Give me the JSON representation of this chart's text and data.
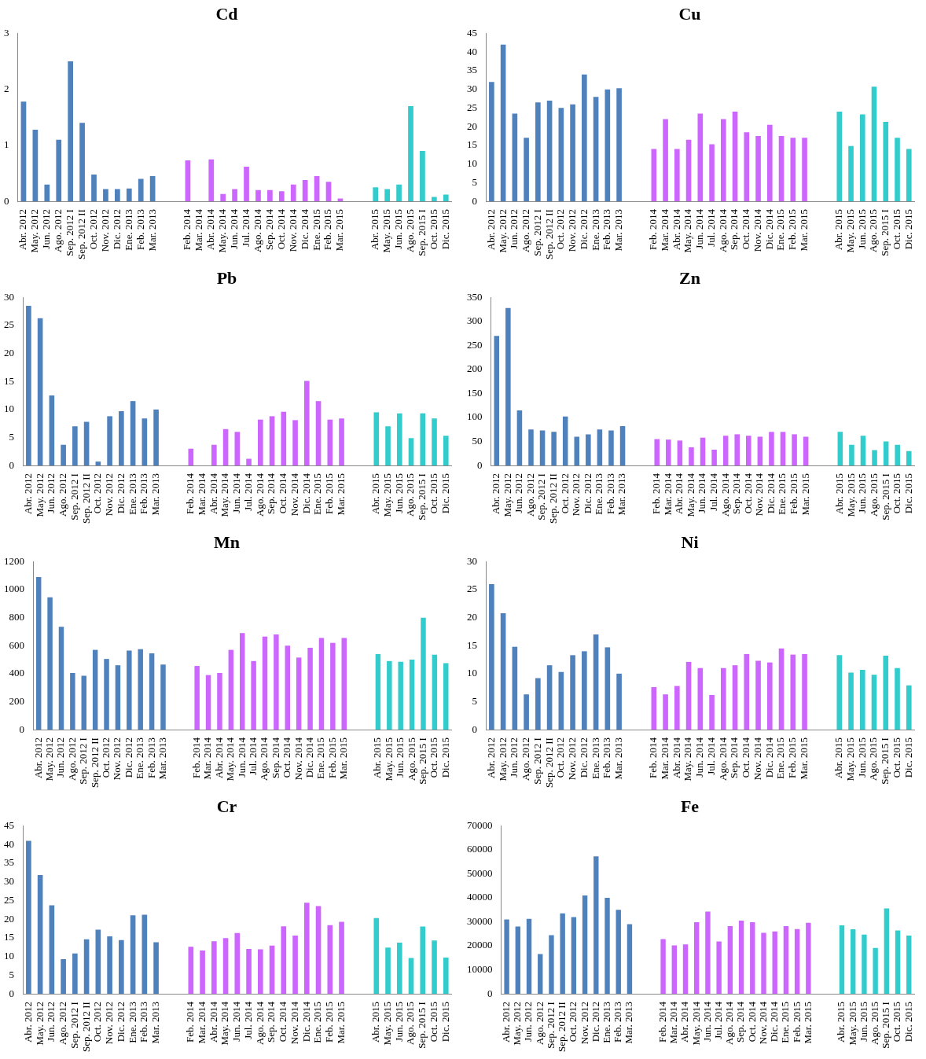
{
  "chart_data": [
    {
      "type": "bar",
      "title": "Cd",
      "categories": [
        "Abr. 2012",
        "May. 2012",
        "Jun. 2012",
        "Ago. 2012",
        "Sep. 2012 I",
        "Sep. 2012 II",
        "Oct. 2012",
        "Nov. 2012",
        "Dic. 2012",
        "Ene. 2013",
        "Feb. 2013",
        "Mar. 2013",
        null,
        null,
        "Feb. 2014",
        "Mar. 2014",
        "Abr. 2014",
        "May. 2014",
        "Jun. 2014",
        "Jul. 2014",
        "Ago. 2014",
        "Sep. 2014",
        "Oct. 2014",
        "Nov. 2014",
        "Dic. 2014",
        "Ene. 2015",
        "Feb. 2015",
        "Mar. 2015",
        null,
        null,
        "Abr. 2015",
        "May. 2015",
        "Jun. 2015",
        "Ago. 2015",
        "Sep. 2015 I",
        "Oct. 2015",
        "Dic. 2015"
      ],
      "values": [
        1.78,
        1.28,
        0.3,
        1.1,
        2.5,
        1.4,
        0.48,
        0.22,
        0.22,
        0.23,
        0.4,
        0.45,
        null,
        null,
        0.73,
        null,
        0.75,
        0.13,
        0.22,
        0.62,
        0.2,
        0.2,
        0.18,
        0.3,
        0.38,
        0.45,
        0.35,
        0.05,
        null,
        null,
        0.25,
        0.22,
        0.3,
        1.7,
        0.9,
        0.08,
        0.12
      ],
      "colors": [
        "#4f81bd",
        "#4f81bd",
        "#4f81bd",
        "#4f81bd",
        "#4f81bd",
        "#4f81bd",
        "#4f81bd",
        "#4f81bd",
        "#4f81bd",
        "#4f81bd",
        "#4f81bd",
        "#4f81bd",
        null,
        null,
        "#cc66ff",
        "#cc66ff",
        "#cc66ff",
        "#cc66ff",
        "#cc66ff",
        "#cc66ff",
        "#cc66ff",
        "#cc66ff",
        "#cc66ff",
        "#cc66ff",
        "#cc66ff",
        "#cc66ff",
        "#cc66ff",
        "#cc66ff",
        null,
        null,
        "#33cccc",
        "#33cccc",
        "#33cccc",
        "#33cccc",
        "#33cccc",
        "#33cccc",
        "#33cccc"
      ],
      "ylim": [
        0,
        3
      ],
      "yticks": [
        0,
        1,
        2,
        3
      ]
    },
    {
      "type": "bar",
      "title": "Cu",
      "categories": [
        "Abr. 2012",
        "May. 2012",
        "Jun. 2012",
        "Ago. 2012",
        "Sep. 2012 I",
        "Sep. 2012 II",
        "Oct. 2012",
        "Nov. 2012",
        "Dic. 2012",
        "Ene. 2013",
        "Feb. 2013",
        "Mar. 2013",
        null,
        null,
        "Feb. 2014",
        "Mar. 2014",
        "Abr. 2014",
        "May. 2014",
        "Jun. 2014",
        "Jul. 2014",
        "Ago. 2014",
        "Sep. 2014",
        "Oct. 2014",
        "Nov. 2014",
        "Dic. 2014",
        "Ene. 2015",
        "Feb. 2015",
        "Mar. 2015",
        null,
        null,
        "Abr. 2015",
        "May. 2015",
        "Jun. 2015",
        "Ago. 2015",
        "Sep. 2015 I",
        "Oct. 2015",
        "Dic. 2015"
      ],
      "values": [
        32,
        42,
        23.5,
        17,
        26.5,
        27,
        25,
        26,
        34,
        28,
        30,
        30.3,
        null,
        null,
        14,
        22,
        14,
        16.5,
        23.5,
        15.3,
        22,
        24,
        18.5,
        17.5,
        20.5,
        17.5,
        17,
        17,
        null,
        null,
        24,
        14.8,
        23.3,
        30.7,
        21.3,
        17,
        14
      ],
      "colors": [
        "#4f81bd",
        "#4f81bd",
        "#4f81bd",
        "#4f81bd",
        "#4f81bd",
        "#4f81bd",
        "#4f81bd",
        "#4f81bd",
        "#4f81bd",
        "#4f81bd",
        "#4f81bd",
        "#4f81bd",
        null,
        null,
        "#cc66ff",
        "#cc66ff",
        "#cc66ff",
        "#cc66ff",
        "#cc66ff",
        "#cc66ff",
        "#cc66ff",
        "#cc66ff",
        "#cc66ff",
        "#cc66ff",
        "#cc66ff",
        "#cc66ff",
        "#cc66ff",
        "#cc66ff",
        null,
        null,
        "#33cccc",
        "#33cccc",
        "#33cccc",
        "#33cccc",
        "#33cccc",
        "#33cccc",
        "#33cccc"
      ],
      "ylim": [
        0,
        45
      ],
      "yticks": [
        0,
        5,
        10,
        15,
        20,
        25,
        30,
        35,
        40,
        45
      ]
    },
    {
      "type": "bar",
      "title": "Pb",
      "categories": [
        "Abr. 2012",
        "May. 2012",
        "Jun. 2012",
        "Ago. 2012",
        "Sep. 2012 I",
        "Sep. 2012 II",
        "Oct. 2012",
        "Nov. 2012",
        "Dic. 2012",
        "Ene. 2013",
        "Feb. 2013",
        "Mar. 2013",
        null,
        null,
        "Feb. 2014",
        "Mar. 2014",
        "Abr. 2014",
        "May. 2014",
        "Jun. 2014",
        "Jul. 2014",
        "Ago. 2014",
        "Sep. 2014",
        "Oct. 2014",
        "Nov. 2014",
        "Dic. 2014",
        "Ene. 2015",
        "Feb. 2015",
        "Mar. 2015",
        null,
        null,
        "Abr. 2015",
        "May. 2015",
        "Jun. 2015",
        "Ago. 2015",
        "Sep. 2015 I",
        "Oct. 2015",
        "Dic. 2015"
      ],
      "values": [
        28.5,
        26.3,
        12.5,
        3.7,
        7,
        7.8,
        0.7,
        8.8,
        9.7,
        11.5,
        8.4,
        10,
        null,
        null,
        3,
        null,
        3.7,
        6.5,
        6,
        1.2,
        8.2,
        8.8,
        9.6,
        8.1,
        15.1,
        11.5,
        8.2,
        8.4,
        null,
        null,
        9.5,
        7,
        9.3,
        4.9,
        9.3,
        8.4,
        5.3
      ],
      "colors": [
        "#4f81bd",
        "#4f81bd",
        "#4f81bd",
        "#4f81bd",
        "#4f81bd",
        "#4f81bd",
        "#4f81bd",
        "#4f81bd",
        "#4f81bd",
        "#4f81bd",
        "#4f81bd",
        "#4f81bd",
        null,
        null,
        "#cc66ff",
        "#cc66ff",
        "#cc66ff",
        "#cc66ff",
        "#cc66ff",
        "#cc66ff",
        "#cc66ff",
        "#cc66ff",
        "#cc66ff",
        "#cc66ff",
        "#cc66ff",
        "#cc66ff",
        "#cc66ff",
        "#cc66ff",
        null,
        null,
        "#33cccc",
        "#33cccc",
        "#33cccc",
        "#33cccc",
        "#33cccc",
        "#33cccc",
        "#33cccc"
      ],
      "ylim": [
        0,
        30
      ],
      "yticks": [
        0,
        5,
        10,
        15,
        20,
        25,
        30
      ]
    },
    {
      "type": "bar",
      "title": "Zn",
      "categories": [
        "Abr. 2012",
        "May. 2012",
        "Jun. 2012",
        "Ago. 2012",
        "Sep. 2012 I",
        "Sep. 2012 II",
        "Oct. 2012",
        "Nov. 2012",
        "Dic. 2012",
        "Ene. 2013",
        "Feb. 2013",
        "Mar. 2013",
        null,
        null,
        "Feb. 2014",
        "Mar. 2014",
        "Abr. 2014",
        "May. 2014",
        "Jun. 2014",
        "Jul. 2014",
        "Ago. 2014",
        "Sep. 2014",
        "Oct. 2014",
        "Nov. 2014",
        "Dic. 2014",
        "Ene. 2015",
        "Feb. 2015",
        "Mar. 2015",
        null,
        null,
        "Abr. 2015",
        "May. 2015",
        "Jun. 2015",
        "Ago. 2015",
        "Sep. 2015 I",
        "Oct. 2015",
        "Dic. 2015"
      ],
      "values": [
        270,
        328,
        115,
        75,
        73,
        70,
        102,
        60,
        65,
        75,
        73,
        82,
        null,
        null,
        55,
        54,
        52,
        38,
        58,
        33,
        62,
        65,
        62,
        60,
        70,
        70,
        65,
        60,
        null,
        null,
        70,
        43,
        62,
        32,
        50,
        43,
        30
      ],
      "colors": [
        "#4f81bd",
        "#4f81bd",
        "#4f81bd",
        "#4f81bd",
        "#4f81bd",
        "#4f81bd",
        "#4f81bd",
        "#4f81bd",
        "#4f81bd",
        "#4f81bd",
        "#4f81bd",
        "#4f81bd",
        null,
        null,
        "#cc66ff",
        "#cc66ff",
        "#cc66ff",
        "#cc66ff",
        "#cc66ff",
        "#cc66ff",
        "#cc66ff",
        "#cc66ff",
        "#cc66ff",
        "#cc66ff",
        "#cc66ff",
        "#cc66ff",
        "#cc66ff",
        "#cc66ff",
        null,
        null,
        "#33cccc",
        "#33cccc",
        "#33cccc",
        "#33cccc",
        "#33cccc",
        "#33cccc",
        "#33cccc"
      ],
      "ylim": [
        0,
        350
      ],
      "yticks": [
        0,
        50,
        100,
        150,
        200,
        250,
        300,
        350
      ]
    },
    {
      "type": "bar",
      "title": "Mn",
      "categories": [
        "Abr. 2012",
        "May. 2012",
        "Jun. 2012",
        "Ago. 2012",
        "Sep. 2012 I",
        "Sep. 2012 II",
        "Oct. 2012",
        "Nov. 2012",
        "Dic. 2012",
        "Ene. 2013",
        "Feb. 2013",
        "Mar. 2013",
        null,
        null,
        "Feb. 2014",
        "Mar. 2014",
        "Abr. 2014",
        "May. 2014",
        "Jun. 2014",
        "Jul. 2014",
        "Ago. 2014",
        "Sep. 2014",
        "Oct. 2014",
        "Nov. 2014",
        "Dic. 2014",
        "Ene. 2015",
        "Feb. 2015",
        "Mar. 2015",
        null,
        null,
        "Abr. 2015",
        "May. 2015",
        "Jun. 2015",
        "Ago. 2015",
        "Sep. 2015 I",
        "Oct. 2015",
        "Dic. 2015"
      ],
      "values": [
        1090,
        945,
        735,
        405,
        385,
        570,
        505,
        460,
        565,
        575,
        545,
        465,
        null,
        null,
        455,
        390,
        405,
        570,
        690,
        490,
        665,
        680,
        600,
        515,
        585,
        655,
        620,
        655,
        null,
        null,
        540,
        490,
        485,
        500,
        800,
        535,
        475
      ],
      "colors": [
        "#4f81bd",
        "#4f81bd",
        "#4f81bd",
        "#4f81bd",
        "#4f81bd",
        "#4f81bd",
        "#4f81bd",
        "#4f81bd",
        "#4f81bd",
        "#4f81bd",
        "#4f81bd",
        "#4f81bd",
        null,
        null,
        "#cc66ff",
        "#cc66ff",
        "#cc66ff",
        "#cc66ff",
        "#cc66ff",
        "#cc66ff",
        "#cc66ff",
        "#cc66ff",
        "#cc66ff",
        "#cc66ff",
        "#cc66ff",
        "#cc66ff",
        "#cc66ff",
        "#cc66ff",
        null,
        null,
        "#33cccc",
        "#33cccc",
        "#33cccc",
        "#33cccc",
        "#33cccc",
        "#33cccc",
        "#33cccc"
      ],
      "ylim": [
        0,
        1200
      ],
      "yticks": [
        0,
        200,
        400,
        600,
        800,
        1000,
        1200
      ]
    },
    {
      "type": "bar",
      "title": "Ni",
      "categories": [
        "Abr. 2012",
        "May. 2012",
        "Jun. 2012",
        "Ago. 2012",
        "Sep. 2012 I",
        "Sep. 2012 II",
        "Oct. 2012",
        "Nov. 2012",
        "Dic. 2012",
        "Ene. 2013",
        "Feb. 2013",
        "Mar. 2013",
        null,
        null,
        "Feb. 2014",
        "Mar. 2014",
        "Abr. 2014",
        "May. 2014",
        "Jun. 2014",
        "Jul. 2014",
        "Ago. 2014",
        "Sep. 2014",
        "Oct. 2014",
        "Nov. 2014",
        "Dic. 2014",
        "Ene. 2015",
        "Feb. 2015",
        "Mar. 2015",
        null,
        null,
        "Abr. 2015",
        "May. 2015",
        "Jun. 2015",
        "Ago. 2015",
        "Sep. 2015 I",
        "Oct. 2015",
        "Dic. 2015"
      ],
      "values": [
        26,
        20.8,
        14.8,
        6.3,
        9.2,
        11.5,
        10.3,
        13.3,
        14,
        17,
        14.7,
        10,
        null,
        null,
        7.6,
        6.3,
        7.8,
        12.1,
        11,
        6.2,
        11,
        11.5,
        13.5,
        12.3,
        12,
        14.5,
        13.4,
        13.5,
        null,
        null,
        13.3,
        10.2,
        10.7,
        9.8,
        13.2,
        11,
        7.9
      ],
      "colors": [
        "#4f81bd",
        "#4f81bd",
        "#4f81bd",
        "#4f81bd",
        "#4f81bd",
        "#4f81bd",
        "#4f81bd",
        "#4f81bd",
        "#4f81bd",
        "#4f81bd",
        "#4f81bd",
        "#4f81bd",
        null,
        null,
        "#cc66ff",
        "#cc66ff",
        "#cc66ff",
        "#cc66ff",
        "#cc66ff",
        "#cc66ff",
        "#cc66ff",
        "#cc66ff",
        "#cc66ff",
        "#cc66ff",
        "#cc66ff",
        "#cc66ff",
        "#cc66ff",
        "#cc66ff",
        null,
        null,
        "#33cccc",
        "#33cccc",
        "#33cccc",
        "#33cccc",
        "#33cccc",
        "#33cccc",
        "#33cccc"
      ],
      "ylim": [
        0,
        30
      ],
      "yticks": [
        0,
        5,
        10,
        15,
        20,
        25,
        30
      ]
    },
    {
      "type": "bar",
      "title": "Cr",
      "categories": [
        "Abr. 2012",
        "May. 2012",
        "Jun. 2012",
        "Ago. 2012",
        "Sep. 2012 I",
        "Sep. 2012 II",
        "Oct. 2012",
        "Nov. 2012",
        "Dic. 2012",
        "Ene. 2013",
        "Feb. 2013",
        "Mar. 2013",
        null,
        null,
        "Feb. 2014",
        "Mar. 2014",
        "Abr. 2014",
        "May. 2014",
        "Jun. 2014",
        "Jul. 2014",
        "Ago. 2014",
        "Sep. 2014",
        "Oct. 2014",
        "Nov. 2014",
        "Dic. 2014",
        "Ene. 2015",
        "Feb. 2015",
        "Mar. 2015",
        null,
        null,
        "Abr. 2015",
        "May. 2015",
        "Jun. 2015",
        "Ago. 2015",
        "Sep. 2015 I",
        "Oct. 2015",
        "Dic. 2015"
      ],
      "values": [
        41,
        31.8,
        23.7,
        9.3,
        10.8,
        14.6,
        17.2,
        15.4,
        14.4,
        21,
        21.2,
        13.8,
        null,
        null,
        12.6,
        11.6,
        14.1,
        14.9,
        16.3,
        12,
        11.9,
        12.9,
        18.1,
        15.6,
        24.4,
        23.5,
        18.4,
        19.3,
        null,
        null,
        20.3,
        12.4,
        13.7,
        9.6,
        18,
        14.3,
        9.7
      ],
      "colors": [
        "#4f81bd",
        "#4f81bd",
        "#4f81bd",
        "#4f81bd",
        "#4f81bd",
        "#4f81bd",
        "#4f81bd",
        "#4f81bd",
        "#4f81bd",
        "#4f81bd",
        "#4f81bd",
        "#4f81bd",
        null,
        null,
        "#cc66ff",
        "#cc66ff",
        "#cc66ff",
        "#cc66ff",
        "#cc66ff",
        "#cc66ff",
        "#cc66ff",
        "#cc66ff",
        "#cc66ff",
        "#cc66ff",
        "#cc66ff",
        "#cc66ff",
        "#cc66ff",
        "#cc66ff",
        null,
        null,
        "#33cccc",
        "#33cccc",
        "#33cccc",
        "#33cccc",
        "#33cccc",
        "#33cccc",
        "#33cccc"
      ],
      "ylim": [
        0,
        45
      ],
      "yticks": [
        0,
        5,
        10,
        15,
        20,
        25,
        30,
        35,
        40,
        45
      ]
    },
    {
      "type": "bar",
      "title": "Fe",
      "categories": [
        "Abr. 2012",
        "May. 2012",
        "Jun. 2012",
        "Ago. 2012",
        "Sep. 2012 I",
        "Sep. 2012 II",
        "Oct. 2012",
        "Nov. 2012",
        "Dic. 2012",
        "Ene. 2013",
        "Feb. 2013",
        "Mar. 2013",
        null,
        null,
        "Feb. 2014",
        "Mar. 2014",
        "Abr. 2014",
        "May. 2014",
        "Jun. 2014",
        "Jul. 2014",
        "Ago. 2014",
        "Sep. 2014",
        "Oct. 2014",
        "Nov. 2014",
        "Dic. 2014",
        "Ene. 2015",
        "Feb. 2015",
        "Mar. 2015",
        null,
        null,
        "Abr. 2015",
        "May. 2015",
        "Jun. 2015",
        "Ago. 2015",
        "Sep. 2015 I",
        "Oct. 2015",
        "Dic. 2015"
      ],
      "values": [
        31000,
        28000,
        31200,
        16600,
        24400,
        33500,
        32000,
        41000,
        57300,
        40000,
        35000,
        29000,
        null,
        null,
        22800,
        20200,
        20600,
        29800,
        34300,
        21800,
        28200,
        30500,
        29800,
        25400,
        26000,
        28200,
        27000,
        29600,
        null,
        null,
        28500,
        26900,
        24700,
        19100,
        35600,
        26400,
        24300
      ],
      "colors": [
        "#4f81bd",
        "#4f81bd",
        "#4f81bd",
        "#4f81bd",
        "#4f81bd",
        "#4f81bd",
        "#4f81bd",
        "#4f81bd",
        "#4f81bd",
        "#4f81bd",
        "#4f81bd",
        "#4f81bd",
        null,
        null,
        "#cc66ff",
        "#cc66ff",
        "#cc66ff",
        "#cc66ff",
        "#cc66ff",
        "#cc66ff",
        "#cc66ff",
        "#cc66ff",
        "#cc66ff",
        "#cc66ff",
        "#cc66ff",
        "#cc66ff",
        "#cc66ff",
        "#cc66ff",
        null,
        null,
        "#33cccc",
        "#33cccc",
        "#33cccc",
        "#33cccc",
        "#33cccc",
        "#33cccc",
        "#33cccc"
      ],
      "ylim": [
        0,
        70000
      ],
      "yticks": [
        0,
        10000,
        20000,
        30000,
        40000,
        50000,
        60000,
        70000
      ]
    }
  ]
}
